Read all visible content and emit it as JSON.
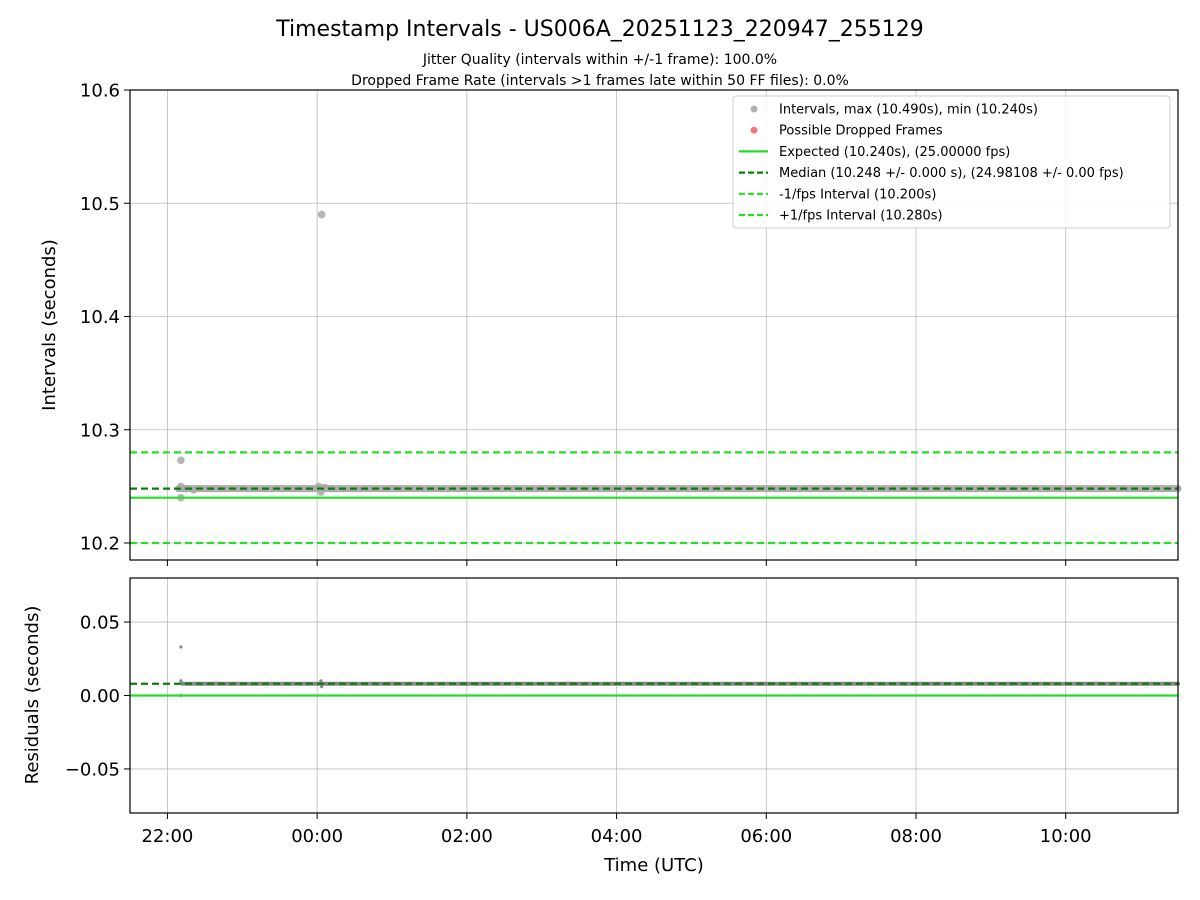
{
  "chart_data": [
    {
      "type": "scatter",
      "title": "Timestamp Intervals - US006A_20251123_220947_255129",
      "subtitle_lines": [
        "Jitter Quality (intervals within +/-1 frame): 100.0%",
        "Dropped Frame Rate (intervals >1 frames late within 50 FF files): 0.0%"
      ],
      "xlabel": "Time (UTC)",
      "ylabel": "Intervals (seconds)",
      "xlim_hours": [
        21.5,
        35.5
      ],
      "ylim": [
        10.185,
        10.6
      ],
      "xticks": [
        {
          "value": 22,
          "label": "22:00"
        },
        {
          "value": 24,
          "label": "00:00"
        },
        {
          "value": 26,
          "label": "02:00"
        },
        {
          "value": 28,
          "label": "04:00"
        },
        {
          "value": 30,
          "label": "06:00"
        },
        {
          "value": 32,
          "label": "08:00"
        },
        {
          "value": 34,
          "label": "10:00"
        }
      ],
      "yticks": [
        {
          "value": 10.2,
          "label": "10.2"
        },
        {
          "value": 10.3,
          "label": "10.3"
        },
        {
          "value": 10.4,
          "label": "10.4"
        },
        {
          "value": 10.5,
          "label": "10.5"
        },
        {
          "value": 10.6,
          "label": "10.6"
        }
      ],
      "grid": true,
      "legend_position": "top-right",
      "legend": [
        {
          "label": "Intervals, max (10.490s), min (10.240s)",
          "kind": "marker",
          "color": "#a8a8a8"
        },
        {
          "label": "Possible Dropped Frames",
          "kind": "marker",
          "color": "#f06868"
        },
        {
          "label": "Expected (10.240s), (25.00000 fps)",
          "kind": "solid",
          "color": "#22e022"
        },
        {
          "label": "Median (10.248 +/- 0.000 s), (24.98108 +/- 0.00 fps)",
          "kind": "dashed",
          "color": "#127812"
        },
        {
          "label": "-1/fps Interval (10.200s)",
          "kind": "dashed",
          "color": "#22e022"
        },
        {
          "label": "+1/fps Interval (10.280s)",
          "kind": "dashed",
          "color": "#22e022"
        }
      ],
      "reference_lines": [
        {
          "name": "expected",
          "y": 10.24,
          "style": "solid",
          "color": "#22e022"
        },
        {
          "name": "median",
          "y": 10.248,
          "style": "dashed",
          "color": "#127812"
        },
        {
          "name": "minus-1-fps",
          "y": 10.2,
          "style": "dashed",
          "color": "#22e022"
        },
        {
          "name": "plus-1-fps",
          "y": 10.28,
          "style": "dashed",
          "color": "#22e022"
        }
      ],
      "series": [
        {
          "name": "Intervals",
          "color": "#a8a8a8",
          "dense_band": {
            "x_start": 22.15,
            "x_end": 35.5,
            "y": 10.248
          },
          "points": [
            {
              "x": 22.18,
              "y": 10.273
            },
            {
              "x": 22.18,
              "y": 10.25
            },
            {
              "x": 22.18,
              "y": 10.24
            },
            {
              "x": 22.25,
              "y": 10.248
            },
            {
              "x": 22.35,
              "y": 10.247
            },
            {
              "x": 24.02,
              "y": 10.25
            },
            {
              "x": 24.05,
              "y": 10.245
            },
            {
              "x": 24.06,
              "y": 10.49
            },
            {
              "x": 24.1,
              "y": 10.249
            },
            {
              "x": 24.2,
              "y": 10.248
            }
          ]
        },
        {
          "name": "Possible Dropped Frames",
          "color": "#f06868",
          "points": []
        }
      ]
    },
    {
      "type": "scatter",
      "xlabel": "Time (UTC)",
      "ylabel": "Residuals (seconds)",
      "xlim_hours": [
        21.5,
        35.5
      ],
      "ylim": [
        -0.08,
        0.08
      ],
      "xticks": [
        {
          "value": 22,
          "label": "22:00"
        },
        {
          "value": 24,
          "label": "00:00"
        },
        {
          "value": 26,
          "label": "02:00"
        },
        {
          "value": 28,
          "label": "04:00"
        },
        {
          "value": 30,
          "label": "06:00"
        },
        {
          "value": 32,
          "label": "08:00"
        },
        {
          "value": 34,
          "label": "10:00"
        }
      ],
      "yticks": [
        {
          "value": -0.05,
          "label": "−0.05"
        },
        {
          "value": 0.0,
          "label": "0.00"
        },
        {
          "value": 0.05,
          "label": "0.05"
        }
      ],
      "grid": true,
      "reference_lines": [
        {
          "name": "zero",
          "y": 0.0,
          "style": "solid",
          "color": "#22e022"
        },
        {
          "name": "median-residual",
          "y": 0.008,
          "style": "dashed",
          "color": "#127812"
        }
      ],
      "series": [
        {
          "name": "Residuals",
          "color": "#808080",
          "dense_band": {
            "x_start": 22.2,
            "x_end": 35.5,
            "y": 0.008
          },
          "points": [
            {
              "x": 22.18,
              "y": 0.033
            },
            {
              "x": 22.18,
              "y": 0.01
            },
            {
              "x": 22.18,
              "y": 0.0
            },
            {
              "x": 24.05,
              "y": 0.01
            },
            {
              "x": 24.06,
              "y": 0.006
            },
            {
              "x": 24.1,
              "y": 0.008
            }
          ]
        }
      ]
    }
  ]
}
